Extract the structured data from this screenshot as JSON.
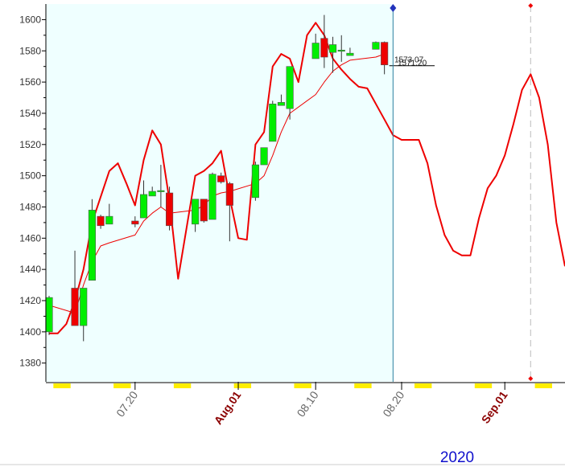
{
  "chart_data": {
    "type": "candlestick",
    "year_label": "2020",
    "xlim": [
      "2020-07-10",
      "2020-09-08"
    ],
    "ylim": [
      1368,
      1610
    ],
    "yticks": [
      1380,
      1400,
      1420,
      1440,
      1460,
      1480,
      1500,
      1520,
      1540,
      1560,
      1580,
      1600
    ],
    "xticks": [
      {
        "value": "2020-07-20",
        "label": "07.20"
      },
      {
        "value": "2020-08-01",
        "label": "Aug.01"
      },
      {
        "value": "2020-08-10",
        "label": "08.10"
      },
      {
        "value": "2020-08-20",
        "label": "08.20"
      },
      {
        "value": "2020-09-01",
        "label": "Sep.01"
      }
    ],
    "month_tick_color": "#8b0000",
    "up_color": "#00ee00",
    "down_color": "#ee0000",
    "cursor_date": "2020-08-19",
    "event_date": "2020-09-04",
    "x": [
      "2020-07-10",
      "2020-07-13",
      "2020-07-14",
      "2020-07-15",
      "2020-07-16",
      "2020-07-17",
      "2020-07-20",
      "2020-07-21",
      "2020-07-22",
      "2020-07-23",
      "2020-07-24",
      "2020-07-27",
      "2020-07-28",
      "2020-07-29",
      "2020-07-30",
      "2020-07-31",
      "2020-08-03",
      "2020-08-04",
      "2020-08-05",
      "2020-08-06",
      "2020-08-07",
      "2020-08-10",
      "2020-08-11",
      "2020-08-12",
      "2020-08-13",
      "2020-08-14",
      "2020-08-17",
      "2020-08-18"
    ],
    "open": [
      1400,
      1428,
      1404,
      1433,
      1474,
      1469,
      1471,
      1473,
      1487,
      1490,
      1489,
      1469,
      1485,
      1472,
      1500,
      1495,
      1486,
      1507,
      1522,
      1545,
      1543,
      1575,
      1588,
      1579,
      1580,
      1577,
      1581,
      1585.5
    ],
    "high": [
      1423,
      1452,
      1428,
      1485,
      1475,
      1482,
      1474,
      1497,
      1493,
      1507,
      1493,
      1485,
      1485,
      1502,
      1502,
      1496,
      1509,
      1518,
      1548,
      1552,
      1570,
      1591,
      1603,
      1589,
      1590,
      1582,
      1586,
      1586
    ],
    "low": [
      1398,
      1404,
      1394,
      1433,
      1466,
      1469,
      1467,
      1473,
      1487,
      1480,
      1465,
      1464,
      1470,
      1472,
      1495,
      1458,
      1484,
      1507,
      1522,
      1545,
      1536,
      1575,
      1569,
      1566,
      1573,
      1577,
      1581,
      1565
    ],
    "close": [
      1422,
      1404,
      1428,
      1478,
      1468,
      1474,
      1469,
      1488,
      1490,
      1490.5,
      1468,
      1485,
      1471,
      1501,
      1496,
      1481,
      1507,
      1518,
      1546,
      1547,
      1570,
      1585,
      1576,
      1584,
      1580.5,
      1578.5,
      1585.5,
      1571
    ],
    "series": [
      {
        "name": "MA",
        "color": "#ee0000",
        "width": 1,
        "x": [
          "2020-07-10",
          "2020-07-13",
          "2020-07-14",
          "2020-07-15",
          "2020-07-16",
          "2020-07-17",
          "2020-07-20",
          "2020-07-21",
          "2020-07-22",
          "2020-07-23",
          "2020-07-24",
          "2020-07-27",
          "2020-07-28",
          "2020-07-29",
          "2020-07-30",
          "2020-07-31",
          "2020-08-03",
          "2020-08-04",
          "2020-08-05",
          "2020-08-06",
          "2020-08-07",
          "2020-08-10",
          "2020-08-11",
          "2020-08-12",
          "2020-08-13",
          "2020-08-14",
          "2020-08-17",
          "2020-08-18"
        ],
        "values": [
          1417,
          1412,
          1430,
          1445,
          1455,
          1457,
          1462,
          1471,
          1476,
          1480,
          1476,
          1478,
          1481,
          1487,
          1489,
          1490,
          1495,
          1500,
          1513,
          1528,
          1540,
          1552,
          1560,
          1567,
          1571,
          1574,
          1576,
          1578
        ]
      },
      {
        "name": "Forecast",
        "color": "#ee0000",
        "width": 2,
        "x": [
          "2020-07-10",
          "2020-07-11",
          "2020-07-12",
          "2020-07-13",
          "2020-07-14",
          "2020-07-15",
          "2020-07-17",
          "2020-07-18",
          "2020-07-19",
          "2020-07-20",
          "2020-07-21",
          "2020-07-22",
          "2020-07-23",
          "2020-07-24",
          "2020-07-25",
          "2020-07-27",
          "2020-07-28",
          "2020-07-29",
          "2020-07-30",
          "2020-07-31",
          "2020-08-01",
          "2020-08-02",
          "2020-08-03",
          "2020-08-04",
          "2020-08-05",
          "2020-08-06",
          "2020-08-07",
          "2020-08-08",
          "2020-08-09",
          "2020-08-10",
          "2020-08-11",
          "2020-08-12",
          "2020-08-13",
          "2020-08-14",
          "2020-08-15",
          "2020-08-16",
          "2020-08-17",
          "2020-08-18",
          "2020-08-19",
          "2020-08-20",
          "2020-08-22",
          "2020-08-23",
          "2020-08-24",
          "2020-08-25",
          "2020-08-26",
          "2020-08-27",
          "2020-08-28",
          "2020-08-29",
          "2020-08-30",
          "2020-08-31",
          "2020-09-01",
          "2020-09-02",
          "2020-09-03",
          "2020-09-04",
          "2020-09-05",
          "2020-09-06",
          "2020-09-07",
          "2020-09-08"
        ],
        "values": [
          1399,
          1399,
          1405,
          1420,
          1440,
          1470,
          1503,
          1508,
          1495,
          1481,
          1510,
          1529,
          1520,
          1484,
          1434,
          1500,
          1503,
          1508,
          1516,
          1486,
          1460,
          1459,
          1520,
          1528,
          1570,
          1578,
          1575,
          1560,
          1590,
          1598,
          1590,
          1575,
          1568,
          1562,
          1557,
          1556,
          1546,
          1536,
          1526,
          1523,
          1523,
          1508,
          1481,
          1462,
          1452,
          1449,
          1449,
          1473,
          1492,
          1500,
          1513,
          1533,
          1555,
          1565,
          1550,
          1520,
          1470,
          1442
        ]
      }
    ],
    "annotations": [
      "1573.07",
      "1571.20"
    ]
  }
}
